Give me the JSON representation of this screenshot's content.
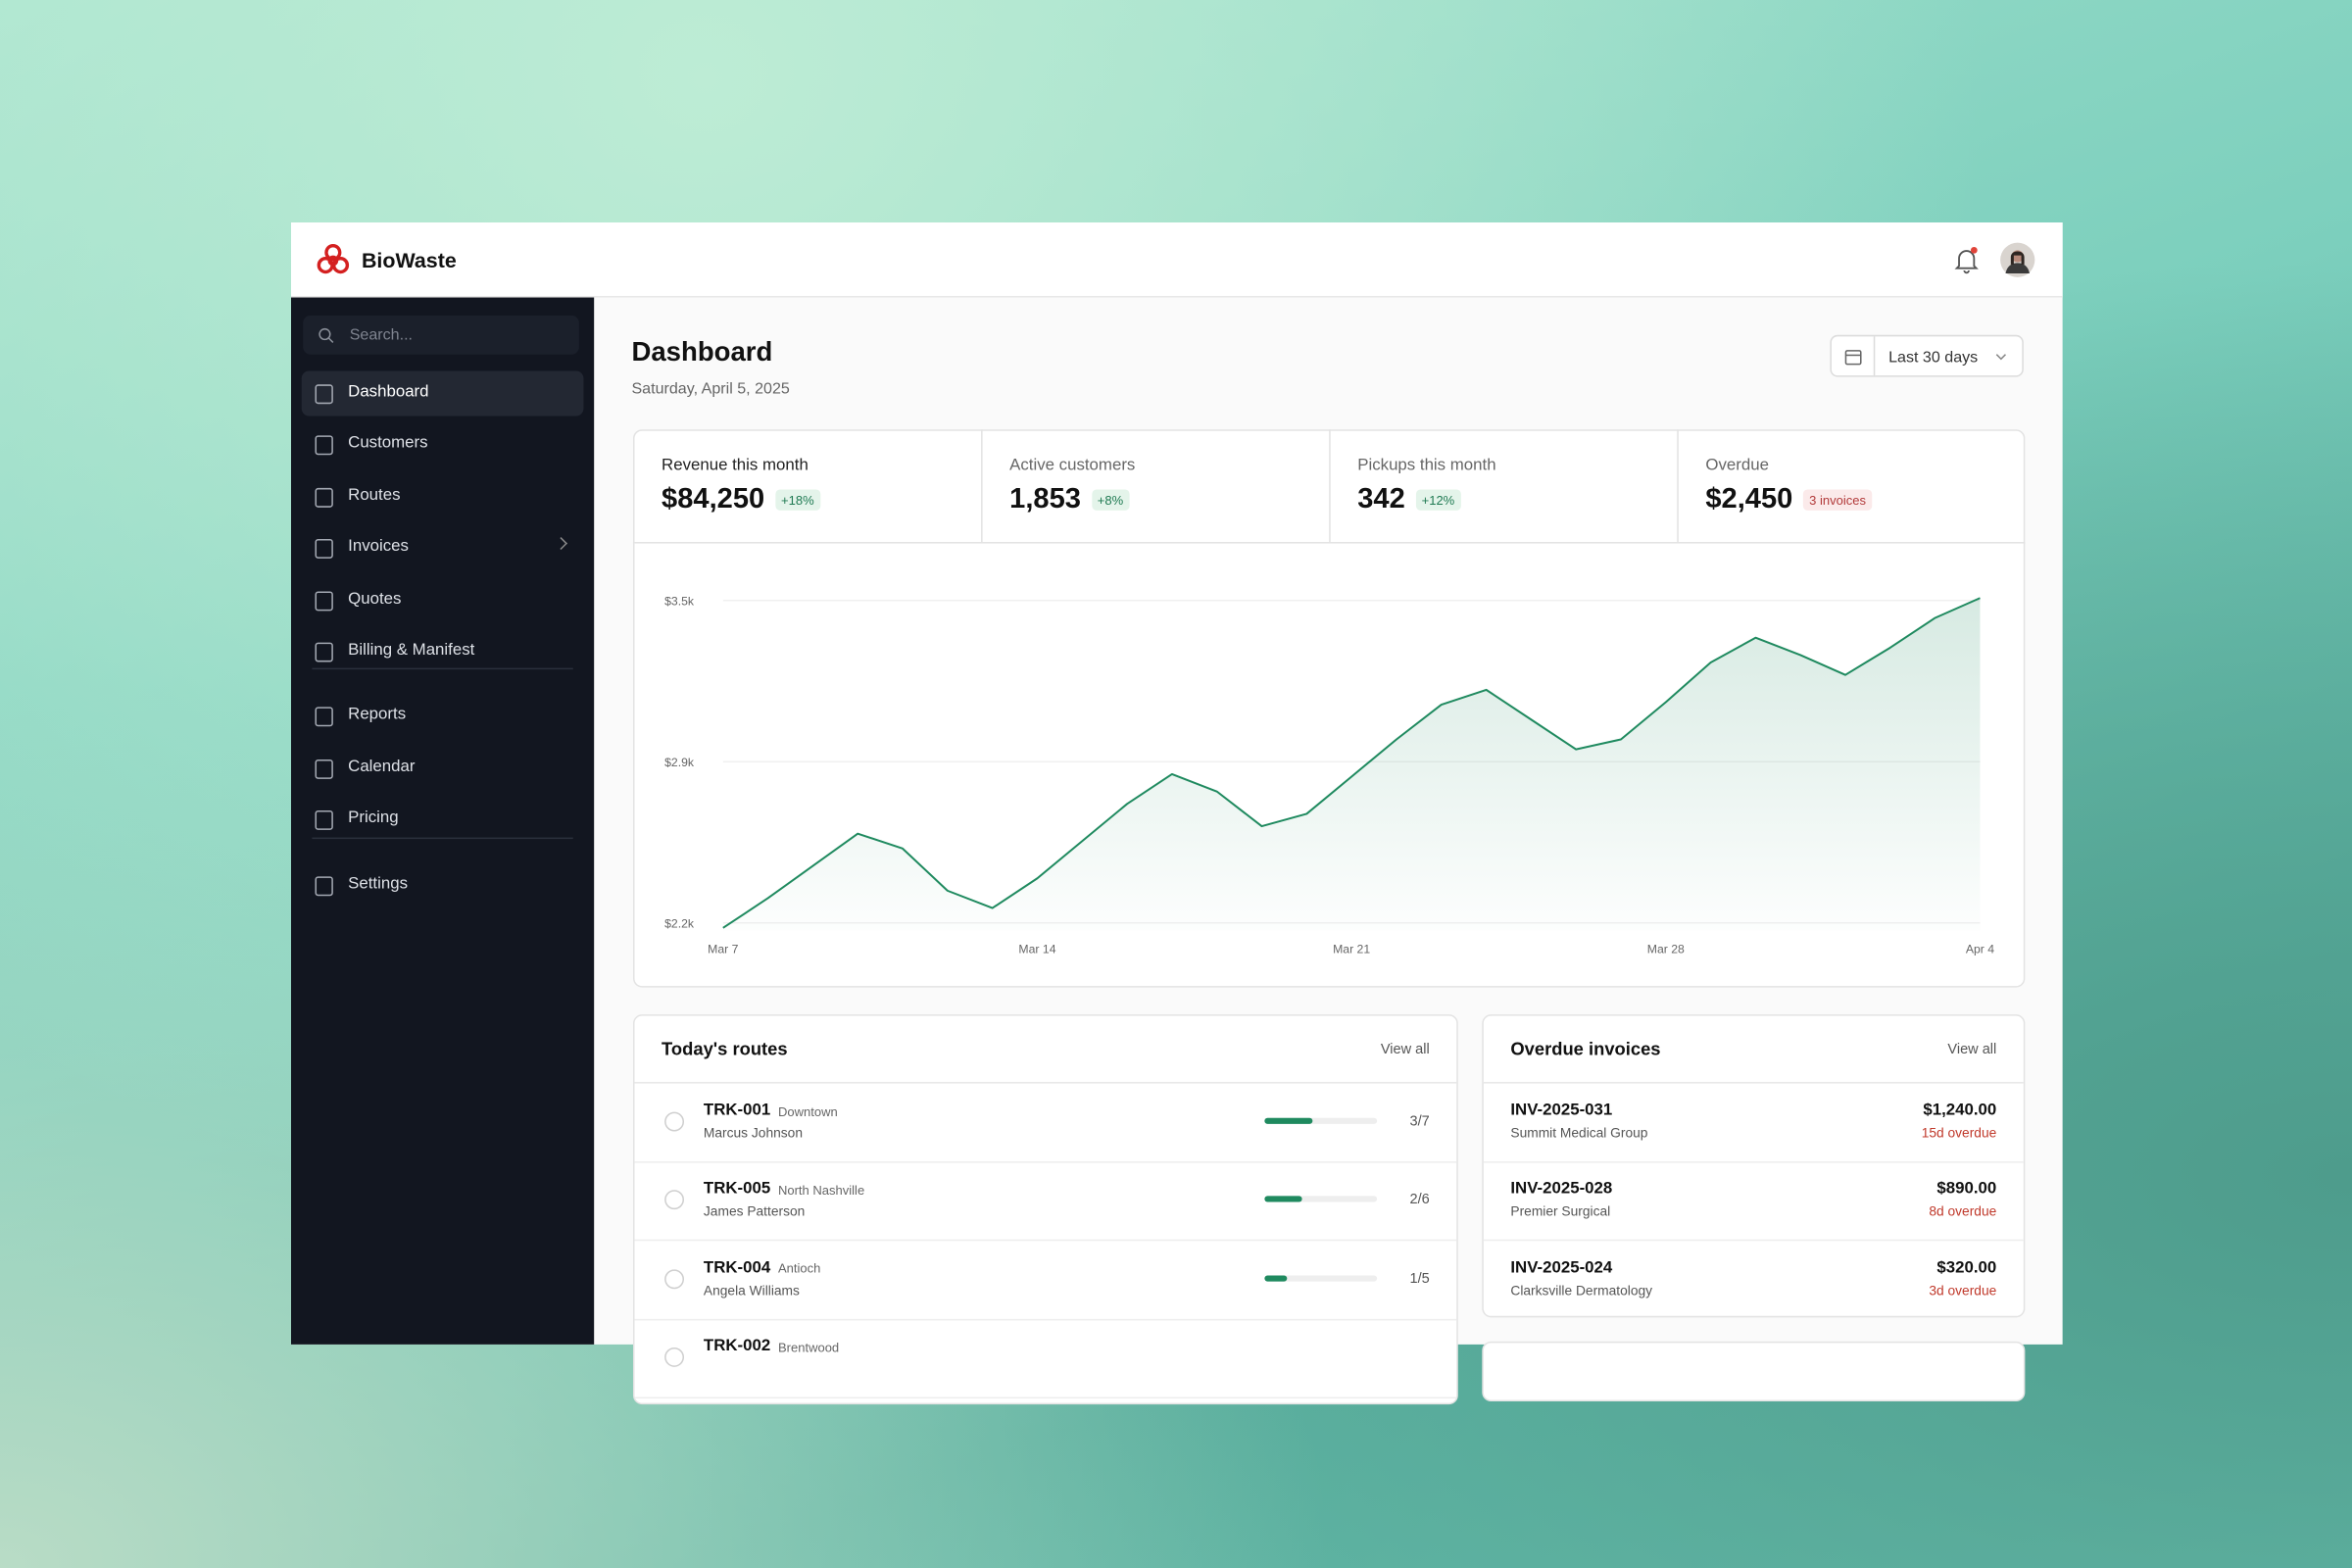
{
  "header": {
    "brand": "BioWaste"
  },
  "sidebar": {
    "search": "Search...",
    "nav": [
      [
        "Dashboard",
        "Customers",
        "Routes",
        "Invoices",
        "Quotes",
        "Billing & Manifest"
      ],
      [
        "Reports",
        "Calendar",
        "Pricing"
      ],
      [
        "Settings"
      ]
    ]
  },
  "page": {
    "title": "Dashboard",
    "date": "Saturday, April 5, 2025",
    "range": "Last 30 days"
  },
  "stats": [
    {
      "label": "Revenue this month",
      "value": "$84,250",
      "change": "+18%"
    },
    {
      "label": "Active customers",
      "value": "1,853",
      "change": "+8%"
    },
    {
      "label": "Pickups this month",
      "value": "342",
      "change": "+12%"
    },
    {
      "label": "Overdue",
      "value": "$2,450",
      "change": "3 invoices"
    }
  ],
  "chart_data": {
    "type": "line",
    "categories": [
      "Mar 7",
      null,
      null,
      null,
      null,
      null,
      null,
      "Mar 14",
      null,
      null,
      null,
      null,
      null,
      null,
      "Mar 21",
      null,
      null,
      null,
      null,
      null,
      null,
      "Mar 28",
      null,
      null,
      null,
      null,
      null,
      null,
      "Apr 4"
    ],
    "values": [
      2180,
      2300,
      2430,
      2560,
      2500,
      2330,
      2260,
      2380,
      2530,
      2680,
      2800,
      2730,
      2590,
      2640,
      2790,
      2940,
      3080,
      3140,
      3020,
      2900,
      2940,
      3090,
      3250,
      3350,
      3280,
      3200,
      3310,
      3430,
      3510
    ],
    "color": "#1f8a5f",
    "ylim": [
      2170,
      3520
    ],
    "yticks": [
      {
        "value": 2200,
        "label": "$2.2k"
      },
      {
        "value": 2850,
        "label": "$2.9k"
      },
      {
        "value": 3500,
        "label": "$3.5k"
      }
    ],
    "grid": true
  },
  "routes": {
    "title": "Today's routes",
    "view_all": "View all",
    "rows": [
      {
        "id": "TRK-001",
        "area": "Downtown",
        "driver": "Marcus Johnson",
        "done": 3,
        "total": 7,
        "progress": "3/7"
      },
      {
        "id": "TRK-005",
        "area": "North Nashville",
        "driver": "James Patterson",
        "done": 2,
        "total": 6,
        "progress": "2/6"
      },
      {
        "id": "TRK-004",
        "area": "Antioch",
        "driver": "Angela Williams",
        "done": 1,
        "total": 5,
        "progress": "1/5"
      },
      {
        "id": "TRK-002",
        "area": "Brentwood"
      }
    ]
  },
  "invoices": {
    "title": "Overdue invoices",
    "view_all": "View all",
    "rows": [
      {
        "id": "INV-2025-031",
        "customer": "Summit Medical Group",
        "amount": "$1,240.00",
        "status": "15d overdue"
      },
      {
        "id": "INV-2025-028",
        "customer": "Premier Surgical",
        "amount": "$890.00",
        "status": "8d overdue"
      },
      {
        "id": "INV-2025-024",
        "customer": "Clarksville Dermatology",
        "amount": "$320.00",
        "status": "3d overdue"
      }
    ]
  }
}
